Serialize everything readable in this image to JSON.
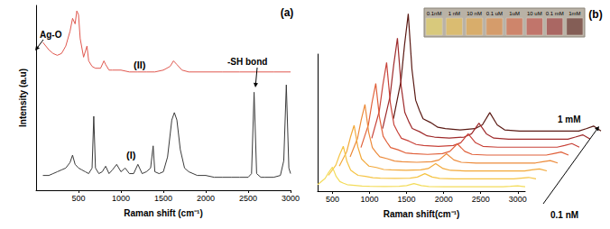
{
  "chart_data": [
    {
      "type": "line",
      "title": "(a)",
      "x_label": "Raman shift (cm⁻¹)",
      "y_label": "Intensity (a.u)",
      "xlim": [
        0,
        3000
      ],
      "xticks": [
        500,
        1000,
        1500,
        2000,
        2500,
        3000
      ],
      "ylim": [
        0,
        100
      ],
      "tick_labels": "x",
      "grid": false,
      "annotations": [
        {
          "text": "Ag-O"
        },
        {
          "text": "-SH bond"
        }
      ],
      "series": [
        {
          "name": "(I)",
          "color": "#3a3a3a",
          "x": [
            80,
            150,
            200,
            250,
            300,
            350,
            400,
            430,
            460,
            500,
            540,
            580,
            620,
            660,
            680,
            700,
            740,
            780,
            820,
            860,
            900,
            950,
            1000,
            1050,
            1100,
            1150,
            1200,
            1250,
            1300,
            1350,
            1380,
            1400,
            1450,
            1500,
            1550,
            1600,
            1630,
            1660,
            1700,
            1750,
            1800,
            1900,
            2000,
            2100,
            2200,
            2300,
            2400,
            2500,
            2540,
            2570,
            2600,
            2650,
            2700,
            2800,
            2880,
            2920,
            2950,
            2980,
            3000
          ],
          "values": [
            8,
            8,
            9,
            10,
            11,
            12,
            15,
            19,
            14,
            12,
            11,
            10,
            9,
            12,
            40,
            12,
            9,
            10,
            13,
            9,
            11,
            14,
            10,
            12,
            9,
            9,
            14,
            9,
            10,
            12,
            24,
            10,
            9,
            10,
            18,
            38,
            42,
            38,
            22,
            12,
            10,
            8,
            8,
            7,
            7,
            7,
            7,
            7,
            9,
            53,
            9,
            7,
            7,
            7,
            8,
            16,
            57,
            12,
            9
          ]
        },
        {
          "name": "(II)",
          "color": "#e0584f",
          "x": [
            80,
            150,
            200,
            250,
            300,
            350,
            400,
            430,
            460,
            480,
            500,
            520,
            560,
            600,
            620,
            660,
            700,
            760,
            800,
            820,
            860,
            900,
            1000,
            1100,
            1200,
            1300,
            1400,
            1500,
            1580,
            1620,
            1660,
            1720,
            1800,
            2000,
            2200,
            2400,
            2600,
            2800,
            3000
          ],
          "values": [
            80,
            76,
            74,
            73,
            74,
            78,
            86,
            93,
            90,
            97,
            95,
            82,
            72,
            78,
            70,
            67,
            66,
            66,
            70,
            68,
            65,
            65,
            65,
            64,
            64,
            64,
            64,
            65,
            67,
            70,
            68,
            65,
            64,
            64,
            64,
            64,
            64,
            64,
            64
          ]
        }
      ]
    },
    {
      "type": "waterfall",
      "title": "(b)",
      "x_label": "Raman shift(cm⁻¹)",
      "xlim": [
        300,
        3100
      ],
      "xticks": [
        500,
        1000,
        1500,
        2000,
        2500,
        3000
      ],
      "ylim": [
        0,
        80
      ],
      "tick_labels": "x",
      "grid": false,
      "annotations": [
        {
          "text": "0.1 nM"
        },
        {
          "text": "1 mM"
        }
      ],
      "x": [
        300,
        400,
        450,
        500,
        550,
        600,
        650,
        700,
        800,
        900,
        1000,
        1200,
        1400,
        1500,
        1600,
        1700,
        1800,
        2000,
        2200,
        2400,
        2600,
        2800,
        2900,
        3000,
        3100
      ],
      "series": [
        {
          "name": "0.1nM",
          "color": "#f3dc5a",
          "values": [
            3.8,
            7.4,
            11,
            14,
            8.6,
            5.6,
            4.6,
            3.8,
            3.4,
            3.0,
            2.8,
            2.7,
            2.8,
            3.2,
            4.4,
            3.2,
            2.7,
            2.6,
            2.6,
            2.6,
            2.6,
            2.6,
            2.8,
            3.1,
            2.6
          ]
        },
        {
          "name": "1 nM",
          "color": "#f5c445",
          "values": [
            5,
            11,
            17,
            22,
            13,
            8,
            6.4,
            5,
            4.4,
            3.6,
            3.4,
            3.2,
            3.4,
            4,
            6,
            4,
            3.2,
            3,
            3,
            3,
            3,
            3,
            3.4,
            3.8,
            3
          ]
        },
        {
          "name": "10 nM",
          "color": "#f2a93b",
          "values": [
            6.2,
            14.6,
            23,
            30,
            17.4,
            10.4,
            8.2,
            6.2,
            5.4,
            4.2,
            4,
            3.7,
            4,
            4.8,
            7.6,
            4.8,
            3.7,
            3.4,
            3.4,
            3.4,
            3.4,
            3.4,
            4,
            4.5,
            3.4
          ]
        },
        {
          "name": "0.1 uM",
          "color": "#ec8a3a",
          "values": [
            7.4,
            18.2,
            29,
            38,
            21.8,
            12.8,
            9.9,
            7.4,
            6.3,
            4.9,
            4.5,
            4.2,
            4.5,
            5.6,
            9.2,
            5.6,
            4.2,
            3.8,
            3.8,
            3.8,
            3.8,
            3.8,
            4.5,
            5.2,
            3.8
          ]
        },
        {
          "name": "1uM",
          "color": "#e0603a",
          "values": [
            8.6,
            21.8,
            35,
            46,
            26.2,
            15.2,
            11.7,
            8.6,
            7.3,
            5.5,
            5.1,
            4.6,
            5.1,
            6.4,
            10.8,
            6.4,
            4.6,
            4.2,
            4.2,
            4.2,
            4.2,
            4.2,
            5.1,
            6,
            4.2
          ]
        },
        {
          "name": "10 uM",
          "color": "#c8433a",
          "values": [
            9.8,
            25.4,
            41,
            54,
            30.6,
            17.6,
            13.4,
            9.8,
            8.2,
            6.2,
            5.6,
            5.1,
            5.6,
            7.2,
            12.4,
            7.2,
            5.1,
            4.6,
            4.6,
            4.6,
            4.6,
            4.6,
            5.6,
            6.7,
            4.6
          ]
        },
        {
          "name": "0.1 mM",
          "color": "#9e2a2b",
          "values": [
            11.3,
            29.9,
            48.5,
            64,
            36.1,
            20.6,
            15.6,
            11.3,
            9.4,
            7,
            6.3,
            5.7,
            6.3,
            8.2,
            14.4,
            8.2,
            5.7,
            5.1,
            5.1,
            5.1,
            5.1,
            5.1,
            6.3,
            7.6,
            5.1
          ]
        },
        {
          "name": "1mM",
          "color": "#5a1a14",
          "values": [
            12.8,
            34.4,
            56,
            74,
            41.6,
            23.6,
            17.8,
            12.8,
            10.6,
            7.8,
            7,
            6.3,
            7,
            9.2,
            16.4,
            9.2,
            6.3,
            5.6,
            5.6,
            5.6,
            5.6,
            5.6,
            7,
            8.5,
            5.6
          ]
        }
      ]
    }
  ]
}
